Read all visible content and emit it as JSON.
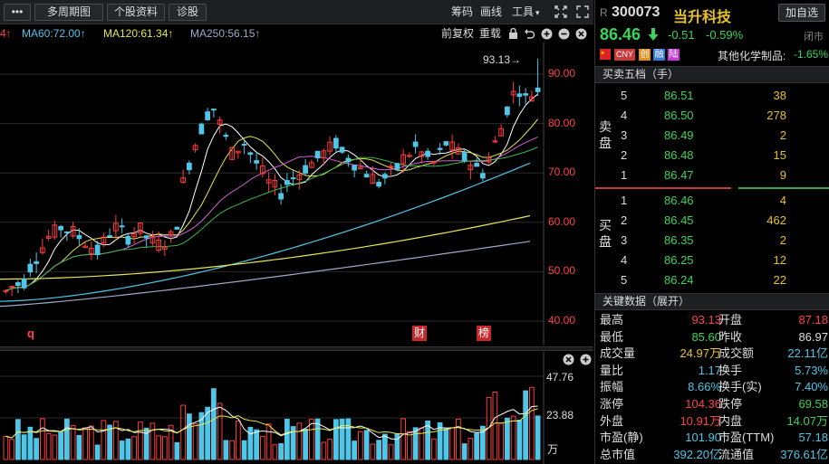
{
  "toolbar": {
    "menu_icon": "more-icon",
    "period_label": "多周期图",
    "stock_info_label": "个股资料",
    "diagnose_label": "诊股",
    "chips_label": "筹码",
    "draw_label": "画线",
    "tools_label": "工具",
    "tools_caret": "▾",
    "expand_icon": "expand-icon"
  },
  "ma_line": {
    "ma_partial": "4↑",
    "ma60": "MA60:72.00↑",
    "ma120": "MA120:61.34↑",
    "ma250": "MA250:56.15↑",
    "fq_label": "前复权",
    "overlay_label": "重载",
    "colors": {
      "ma_partial": "#ff4444",
      "ma60": "#4fc6e8",
      "ma120": "#e6e84f",
      "ma250": "#a0a8c8",
      "up_arrow": "#ff4444"
    }
  },
  "chart": {
    "high_marker": "93.13→",
    "y_ticks": [
      "90.00",
      "80.00",
      "70.00",
      "60.00",
      "50.00",
      "40.00"
    ],
    "flag_q": "q",
    "flag_cai": "财",
    "flag_bang": "榜"
  },
  "volume": {
    "y_ticks": [
      "47.76",
      "23.88"
    ],
    "unit": "万"
  },
  "quote": {
    "prefix": "R",
    "code": "300073",
    "name": "当升科技",
    "watch_label": "加自选",
    "price": "86.46",
    "change": "-0.51",
    "change_pct": "-0.59%",
    "status": "闭市",
    "tags": [
      "CNY",
      "创",
      "融",
      "陆"
    ],
    "sector": "其他化学制品:",
    "sector_pct": "-1.65%"
  },
  "orderbook": {
    "title": "买卖五档（手）",
    "sell_label": "卖盘",
    "buy_label": "买盘",
    "sells": [
      {
        "level": "5",
        "price": "86.51",
        "vol": "38"
      },
      {
        "level": "4",
        "price": "86.50",
        "vol": "278"
      },
      {
        "level": "3",
        "price": "86.49",
        "vol": "2"
      },
      {
        "level": "2",
        "price": "86.48",
        "vol": "15"
      },
      {
        "level": "1",
        "price": "86.47",
        "vol": "9"
      }
    ],
    "buys": [
      {
        "level": "1",
        "price": "86.46",
        "vol": "4"
      },
      {
        "level": "2",
        "price": "86.45",
        "vol": "462"
      },
      {
        "level": "3",
        "price": "86.35",
        "vol": "2"
      },
      {
        "level": "4",
        "price": "86.25",
        "vol": "12"
      },
      {
        "level": "5",
        "price": "86.24",
        "vol": "22"
      }
    ]
  },
  "keydata": {
    "title": "关键数据（展开）",
    "rows": [
      {
        "l1": "最高",
        "v1": "93.13",
        "c1": "r",
        "l2": "开盘",
        "v2": "87.18",
        "c2": "r"
      },
      {
        "l1": "最低",
        "v1": "85.60",
        "c1": "g",
        "l2": "昨收",
        "v2": "86.97",
        "c2": "w"
      },
      {
        "l1": "成交量",
        "v1": "24.97万",
        "c1": "y",
        "l2": "成交额",
        "v2": "22.11亿",
        "c2": "c"
      },
      {
        "l1": "量比",
        "v1": "1.17",
        "c1": "c",
        "l2": "换手",
        "v2": "5.73%",
        "c2": "c"
      },
      {
        "l1": "振幅",
        "v1": "8.66%",
        "c1": "c",
        "l2": "换手(实)",
        "v2": "7.40%",
        "c2": "c"
      },
      {
        "l1": "涨停",
        "v1": "104.36",
        "c1": "r",
        "l2": "跌停",
        "v2": "69.58",
        "c2": "g"
      },
      {
        "l1": "外盘",
        "v1": "10.91万",
        "c1": "r",
        "l2": "内盘",
        "v2": "14.07万",
        "c2": "g"
      },
      {
        "l1": "市盈(静)",
        "v1": "101.90",
        "c1": "c",
        "l2": "市盈(TTM)",
        "v2": "57.18",
        "c2": "c"
      },
      {
        "l1": "总市值",
        "v1": "392.20亿",
        "c1": "c",
        "l2": "流通值",
        "v2": "376.61亿",
        "c2": "c"
      }
    ]
  }
}
